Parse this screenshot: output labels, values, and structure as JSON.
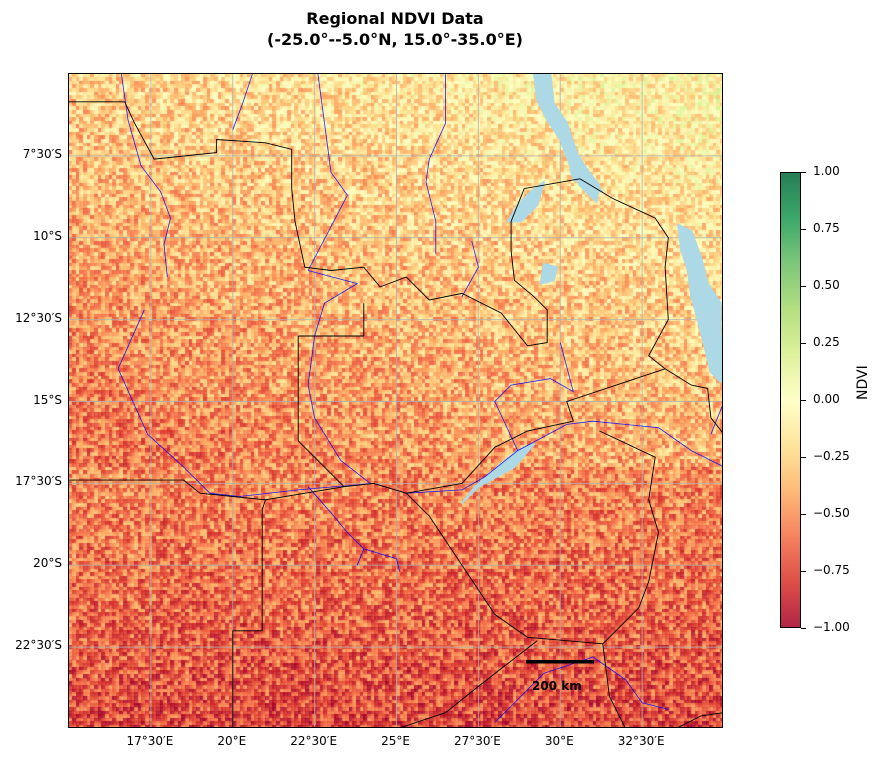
{
  "title_line1": "Regional NDVI Data",
  "title_line2": "(-25.0°--5.0°N, 15.0°-35.0°E)",
  "map": {
    "extent": {
      "lon_min": 15.0,
      "lon_max": 35.0,
      "lat_min": -25.0,
      "lat_max": -5.0
    },
    "gridlines": "on",
    "lat_ticks": [
      {
        "value": -7.5,
        "label": "7°30′S"
      },
      {
        "value": -10.0,
        "label": "10°S"
      },
      {
        "value": -12.5,
        "label": "12°30′S"
      },
      {
        "value": -15.0,
        "label": "15°S"
      },
      {
        "value": -17.5,
        "label": "17°30′S"
      },
      {
        "value": -20.0,
        "label": "20°S"
      },
      {
        "value": -22.5,
        "label": "22°30′S"
      }
    ],
    "lon_ticks": [
      {
        "value": 17.5,
        "label": "17°30′E"
      },
      {
        "value": 20.0,
        "label": "20°E"
      },
      {
        "value": 22.5,
        "label": "22°30′E"
      },
      {
        "value": 25.0,
        "label": "25°E"
      },
      {
        "value": 27.5,
        "label": "27°30′E"
      },
      {
        "value": 30.0,
        "label": "30°E"
      },
      {
        "value": 32.5,
        "label": "32°30′E"
      }
    ],
    "scale_bar_label": "200 km",
    "colors": {
      "border": "#000000",
      "river": "#0000ff",
      "lake": "#add8e6",
      "grid": "#b0b0b0"
    },
    "borders": [
      [
        [
          15.0,
          -5.85
        ],
        [
          16.7,
          -5.85
        ],
        [
          17.0,
          -6.5
        ],
        [
          17.6,
          -7.6
        ],
        [
          19.5,
          -7.4
        ],
        [
          19.5,
          -7.0
        ],
        [
          21.0,
          -7.1
        ],
        [
          21.8,
          -7.3
        ],
        [
          21.8,
          -8.5
        ],
        [
          21.9,
          -9.5
        ],
        [
          22.2,
          -10.9
        ],
        [
          23.0,
          -11.0
        ],
        [
          24.0,
          -10.9
        ],
        [
          24.5,
          -11.5
        ],
        [
          25.3,
          -11.2
        ],
        [
          26.0,
          -11.9
        ],
        [
          27.0,
          -11.7
        ],
        [
          28.2,
          -12.3
        ],
        [
          29.0,
          -13.3
        ],
        [
          29.6,
          -13.2
        ],
        [
          29.6,
          -12.2
        ],
        [
          29.2,
          -11.8
        ],
        [
          28.6,
          -11.3
        ],
        [
          28.5,
          -10.4
        ],
        [
          28.5,
          -9.5
        ],
        [
          28.9,
          -8.5
        ],
        [
          30.6,
          -8.2
        ]
      ],
      [
        [
          30.6,
          -8.2
        ],
        [
          31.6,
          -8.8
        ],
        [
          32.9,
          -9.4
        ],
        [
          33.3,
          -10.0
        ],
        [
          33.2,
          -10.9
        ],
        [
          33.3,
          -12.5
        ],
        [
          32.7,
          -13.6
        ],
        [
          33.2,
          -14.0
        ],
        [
          30.2,
          -15.0
        ],
        [
          30.4,
          -15.6
        ],
        [
          29.0,
          -15.9
        ],
        [
          28.0,
          -16.4
        ],
        [
          27.0,
          -17.5
        ],
        [
          25.3,
          -17.8
        ],
        [
          24.3,
          -17.5
        ],
        [
          23.4,
          -17.6
        ],
        [
          21.0,
          -18.0
        ],
        [
          20.9,
          -18.3
        ],
        [
          20.9,
          -22.0
        ],
        [
          20.0,
          -22.0
        ],
        [
          20.0,
          -25.0
        ]
      ],
      [
        [
          15.0,
          -17.4
        ],
        [
          18.5,
          -17.4
        ],
        [
          19.0,
          -17.8
        ],
        [
          21.0,
          -18.0
        ]
      ],
      [
        [
          22.0,
          -13.0
        ],
        [
          22.0,
          -16.2
        ],
        [
          23.4,
          -17.6
        ]
      ],
      [
        [
          22.0,
          -13.0
        ],
        [
          24.0,
          -13.0
        ],
        [
          24.0,
          -12.0
        ]
      ],
      [
        [
          25.3,
          -17.8
        ],
        [
          26.0,
          -18.5
        ],
        [
          27.0,
          -20.0
        ],
        [
          28.0,
          -21.5
        ],
        [
          29.0,
          -22.2
        ],
        [
          31.3,
          -22.4
        ],
        [
          32.4,
          -21.3
        ],
        [
          32.7,
          -20.5
        ],
        [
          33.0,
          -19.0
        ],
        [
          32.7,
          -18.0
        ],
        [
          32.9,
          -16.7
        ],
        [
          31.2,
          -15.9
        ]
      ],
      [
        [
          33.2,
          -14.0
        ],
        [
          34.0,
          -14.5
        ],
        [
          34.5,
          -14.6
        ],
        [
          34.6,
          -15.5
        ],
        [
          35.0,
          -16.0
        ]
      ],
      [
        [
          25.0,
          -25.0
        ],
        [
          26.5,
          -24.5
        ],
        [
          27.5,
          -23.7
        ],
        [
          29.3,
          -22.3
        ]
      ],
      [
        [
          31.3,
          -22.4
        ],
        [
          31.5,
          -24.0
        ],
        [
          32.0,
          -25.0
        ]
      ],
      [
        [
          33.5,
          -25.0
        ],
        [
          34.3,
          -24.6
        ],
        [
          35.0,
          -24.5
        ]
      ]
    ],
    "rivers": [
      [
        [
          16.6,
          -5.0
        ],
        [
          16.8,
          -6.4
        ],
        [
          17.2,
          -7.8
        ],
        [
          17.8,
          -8.6
        ],
        [
          18.1,
          -9.4
        ],
        [
          17.9,
          -10.2
        ],
        [
          18.0,
          -11.2
        ]
      ],
      [
        [
          20.6,
          -5.0
        ],
        [
          20.3,
          -5.9
        ],
        [
          20.0,
          -6.7
        ]
      ],
      [
        [
          22.6,
          -5.0
        ],
        [
          22.8,
          -6.5
        ],
        [
          23.0,
          -8.0
        ],
        [
          23.5,
          -8.7
        ],
        [
          22.3,
          -11.0
        ]
      ],
      [
        [
          22.3,
          -11.0
        ],
        [
          23.8,
          -11.4
        ],
        [
          22.8,
          -12.0
        ],
        [
          22.5,
          -13.0
        ],
        [
          22.3,
          -14.5
        ],
        [
          22.5,
          -15.5
        ],
        [
          23.3,
          -16.8
        ],
        [
          24.2,
          -17.5
        ]
      ],
      [
        [
          26.5,
          -5.0
        ],
        [
          26.5,
          -6.5
        ],
        [
          26.0,
          -7.6
        ],
        [
          25.9,
          -8.3
        ],
        [
          26.2,
          -9.5
        ],
        [
          26.2,
          -10.5
        ]
      ],
      [
        [
          17.3,
          -12.2
        ],
        [
          16.5,
          -14.0
        ],
        [
          17.4,
          -16.0
        ],
        [
          18.5,
          -17.0
        ],
        [
          19.3,
          -17.8
        ],
        [
          20.2,
          -17.9
        ],
        [
          22.0,
          -17.7
        ],
        [
          24.3,
          -17.5
        ],
        [
          25.3,
          -17.8
        ],
        [
          27.0,
          -17.7
        ],
        [
          27.7,
          -17.3
        ],
        [
          28.7,
          -16.5
        ],
        [
          30.2,
          -15.7
        ],
        [
          31.0,
          -15.6
        ],
        [
          33.0,
          -15.8
        ],
        [
          34.0,
          -16.5
        ],
        [
          35.0,
          -17.0
        ]
      ],
      [
        [
          22.3,
          -17.6
        ],
        [
          23.0,
          -18.4
        ],
        [
          23.5,
          -19.0
        ],
        [
          24.0,
          -19.5
        ],
        [
          25.0,
          -19.8
        ],
        [
          25.1,
          -20.2
        ]
      ],
      [
        [
          24.0,
          -19.5
        ],
        [
          23.8,
          -20.0
        ]
      ],
      [
        [
          28.7,
          -16.5
        ],
        [
          28.0,
          -15.0
        ],
        [
          28.5,
          -14.5
        ],
        [
          29.7,
          -14.3
        ],
        [
          30.4,
          -14.7
        ],
        [
          30.0,
          -13.2
        ]
      ],
      [
        [
          27.0,
          -11.8
        ],
        [
          27.5,
          -10.9
        ],
        [
          27.3,
          -10.1
        ]
      ],
      [
        [
          35.0,
          -15.0
        ],
        [
          34.6,
          -16.0
        ]
      ],
      [
        [
          28.0,
          -24.8
        ],
        [
          29.5,
          -23.3
        ],
        [
          31.0,
          -22.8
        ],
        [
          32.0,
          -23.5
        ],
        [
          32.5,
          -24.2
        ],
        [
          33.3,
          -24.4
        ]
      ]
    ],
    "lakes": [
      [
        [
          29.2,
          -5.0
        ],
        [
          29.7,
          -5.0
        ],
        [
          29.8,
          -5.9
        ],
        [
          30.2,
          -6.5
        ],
        [
          30.5,
          -7.4
        ],
        [
          30.8,
          -7.9
        ],
        [
          31.2,
          -8.4
        ],
        [
          31.1,
          -8.9
        ],
        [
          30.6,
          -8.4
        ],
        [
          30.3,
          -7.8
        ],
        [
          30.0,
          -7.0
        ],
        [
          29.6,
          -6.4
        ],
        [
          29.3,
          -5.8
        ]
      ],
      [
        [
          29.1,
          -8.6
        ],
        [
          29.5,
          -8.3
        ],
        [
          29.3,
          -9.0
        ],
        [
          28.8,
          -9.5
        ],
        [
          28.4,
          -9.5
        ],
        [
          28.7,
          -9.0
        ]
      ],
      [
        [
          33.6,
          -9.6
        ],
        [
          34.0,
          -9.8
        ],
        [
          34.3,
          -10.6
        ],
        [
          34.5,
          -11.4
        ],
        [
          34.9,
          -12.0
        ],
        [
          34.9,
          -13.0
        ],
        [
          35.0,
          -13.8
        ],
        [
          34.9,
          -14.4
        ],
        [
          34.6,
          -14.1
        ],
        [
          34.4,
          -13.3
        ],
        [
          34.2,
          -12.5
        ],
        [
          34.0,
          -11.8
        ],
        [
          33.9,
          -11.0
        ],
        [
          33.7,
          -10.4
        ]
      ],
      [
        [
          30.3,
          -7.9
        ],
        [
          30.9,
          -8.2
        ],
        [
          31.3,
          -8.6
        ],
        [
          30.9,
          -8.5
        ],
        [
          30.4,
          -8.2
        ]
      ],
      [
        [
          29.5,
          -10.8
        ],
        [
          29.9,
          -10.9
        ],
        [
          29.8,
          -11.3
        ],
        [
          29.4,
          -11.4
        ]
      ],
      [
        [
          28.7,
          -16.5
        ],
        [
          29.2,
          -16.3
        ],
        [
          28.6,
          -17.0
        ],
        [
          27.5,
          -17.6
        ],
        [
          27.0,
          -18.1
        ],
        [
          27.4,
          -17.6
        ],
        [
          28.2,
          -16.9
        ]
      ]
    ]
  },
  "colorbar": {
    "label": "NDVI",
    "min": -1.0,
    "max": 1.0,
    "ticks": [
      {
        "value": 1.0,
        "label": "1.00"
      },
      {
        "value": 0.75,
        "label": "0.75"
      },
      {
        "value": 0.5,
        "label": "0.50"
      },
      {
        "value": 0.25,
        "label": "0.25"
      },
      {
        "value": 0.0,
        "label": "0.00"
      },
      {
        "value": -0.25,
        "label": "−0.25"
      },
      {
        "value": -0.5,
        "label": "−0.50"
      },
      {
        "value": -0.75,
        "label": "−0.75"
      },
      {
        "value": -1.0,
        "label": "−1.00"
      }
    ],
    "colormap": "RdYlGn",
    "stops": [
      "#a50026",
      "#d73027",
      "#f46d43",
      "#fdae61",
      "#fee08b",
      "#ffffbf",
      "#d9ef8b",
      "#a6d96a",
      "#66bd63",
      "#1a9850",
      "#006837"
    ]
  }
}
